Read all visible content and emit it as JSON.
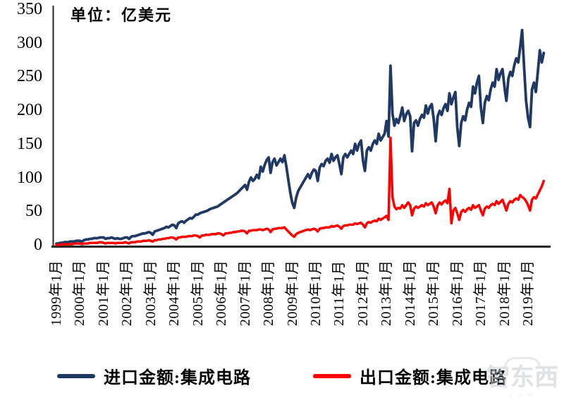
{
  "chart_data": {
    "type": "line",
    "title": "",
    "unit_label": "单位：亿美元",
    "xlabel": "",
    "ylabel": "",
    "ylim": [
      0,
      350
    ],
    "y_ticks": [
      0,
      50,
      100,
      150,
      200,
      250,
      300,
      350
    ],
    "grid": false,
    "legend_position": "bottom",
    "frequency": "monthly",
    "x_start": "1999年1月",
    "x_end": "2019年9月",
    "x_tick_labels": [
      "1999年1月",
      "2000年1月",
      "2001年1月",
      "2002年1月",
      "2003年1月",
      "2004年1月",
      "2005年1月",
      "2006年1月",
      "2007年1月",
      "2008年1月",
      "2009年1月",
      "2010年1月",
      "2011年1月",
      "2012年1月",
      "2013年1月",
      "2014年1月",
      "2015年1月",
      "2016年1月",
      "2017年1月",
      "2018年1月",
      "2019年1月"
    ],
    "series": [
      {
        "name": "进口金额:集成电路",
        "color": "#1f3864",
        "values": [
          3,
          3,
          4,
          4,
          5,
          5,
          5,
          6,
          6,
          6,
          7,
          7,
          7,
          6,
          8,
          9,
          9,
          10,
          10,
          11,
          11,
          11,
          12,
          12,
          12,
          10,
          11,
          11,
          12,
          11,
          10,
          11,
          10,
          10,
          11,
          12,
          12,
          10,
          13,
          14,
          14,
          15,
          16,
          17,
          18,
          18,
          19,
          20,
          19,
          16,
          21,
          22,
          23,
          24,
          25,
          26,
          28,
          27,
          29,
          31,
          30,
          26,
          33,
          35,
          36,
          34,
          37,
          39,
          41,
          40,
          43,
          46,
          46,
          48,
          49,
          50,
          51,
          52,
          54,
          55,
          56,
          57,
          58,
          60,
          62,
          64,
          66,
          68,
          70,
          72,
          74,
          76,
          78,
          81,
          84,
          87,
          90,
          83,
          95,
          101,
          96,
          99,
          105,
          100,
          117,
          110,
          120,
          127,
          131,
          108,
          124,
          129,
          119,
          124,
          129,
          124,
          134,
          118,
          98,
          79,
          64,
          56,
          71,
          81,
          86,
          91,
          96,
          101,
          106,
          100,
          108,
          113,
          111,
          96,
          116,
          121,
          118,
          126,
          129,
          123,
          136,
          126,
          131,
          134,
          121,
          106,
          131,
          136,
          131,
          136,
          141,
          136,
          151,
          141,
          151,
          156,
          126,
          111,
          141,
          146,
          141,
          151,
          156,
          151,
          166,
          156,
          161,
          166,
          185,
          162,
          267,
          196,
          178,
          188,
          182,
          192,
          205,
          185,
          195,
          200,
          192,
          140,
          182,
          186,
          178,
          188,
          194,
          190,
          208,
          196,
          206,
          210,
          188,
          155,
          192,
          200,
          194,
          204,
          210,
          200,
          226,
          210,
          220,
          228,
          176,
          148,
          182,
          192,
          186,
          202,
          212,
          206,
          236,
          226,
          242,
          252,
          205,
          182,
          212,
          222,
          216,
          232,
          242,
          236,
          262,
          246,
          256,
          262,
          235,
          215,
          248,
          258,
          252,
          268,
          278,
          272,
          295,
          320,
          265,
          215,
          190,
          176,
          232,
          242,
          228,
          258,
          290,
          272,
          286
        ]
      },
      {
        "name": "出口金额:集成电路",
        "color": "#ff0000",
        "values": [
          1,
          1,
          1,
          2,
          2,
          2,
          2,
          2,
          2,
          3,
          3,
          3,
          3,
          2,
          3,
          3,
          3,
          4,
          4,
          4,
          4,
          4,
          5,
          5,
          4,
          3,
          4,
          4,
          4,
          4,
          3,
          4,
          4,
          4,
          4,
          5,
          4,
          3,
          5,
          5,
          5,
          6,
          6,
          6,
          7,
          7,
          7,
          8,
          7,
          6,
          8,
          8,
          9,
          9,
          10,
          10,
          11,
          11,
          12,
          12,
          11,
          9,
          12,
          12,
          13,
          13,
          13,
          14,
          14,
          14,
          15,
          15,
          14,
          12,
          15,
          15,
          16,
          16,
          16,
          17,
          17,
          17,
          18,
          18,
          17,
          15,
          18,
          18,
          19,
          19,
          20,
          20,
          21,
          21,
          22,
          22,
          21,
          18,
          22,
          22,
          23,
          23,
          23,
          24,
          24,
          23,
          24,
          25,
          24,
          20,
          24,
          25,
          25,
          26,
          26,
          26,
          27,
          24,
          21,
          18,
          15,
          13,
          17,
          19,
          20,
          21,
          22,
          23,
          24,
          23,
          24,
          25,
          24,
          21,
          25,
          26,
          26,
          27,
          27,
          27,
          29,
          28,
          29,
          30,
          28,
          25,
          29,
          30,
          30,
          31,
          31,
          31,
          33,
          32,
          33,
          34,
          31,
          27,
          33,
          35,
          34,
          36,
          37,
          36,
          40,
          38,
          40,
          42,
          44,
          38,
          160,
          72,
          58,
          54,
          56,
          55,
          60,
          56,
          60,
          64,
          60,
          45,
          55,
          58,
          56,
          58,
          60,
          58,
          63,
          60,
          62,
          64,
          58,
          48,
          60,
          64,
          61,
          65,
          67,
          63,
          84,
          33,
          52,
          56,
          48,
          38,
          50,
          53,
          50,
          54,
          56,
          53,
          60,
          56,
          58,
          60,
          52,
          45,
          55,
          58,
          56,
          60,
          62,
          60,
          66,
          62,
          65,
          68,
          60,
          52,
          62,
          66,
          64,
          68,
          70,
          68,
          75,
          72,
          70,
          66,
          60,
          52,
          68,
          72,
          70,
          76,
          82,
          88,
          96
        ]
      }
    ]
  },
  "axis_colors": {
    "axis_line": "#262626",
    "text": "#000000"
  },
  "watermark": {
    "line1": "智东西",
    "line2": "c o m"
  }
}
